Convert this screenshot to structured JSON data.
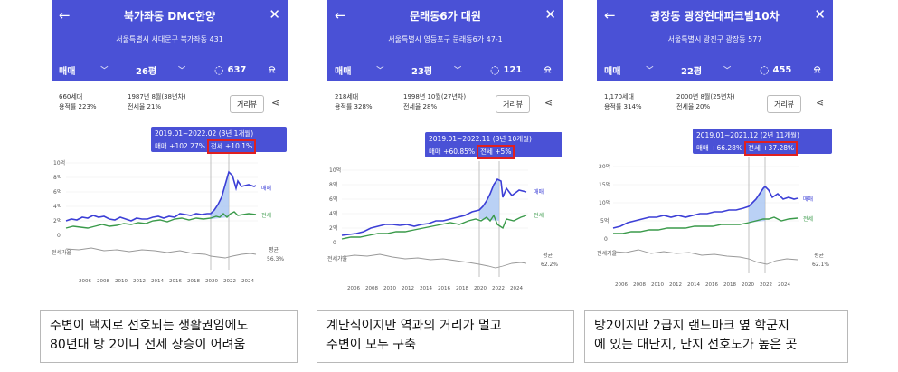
{
  "cards": [
    {
      "title": "북가좌동 DMC한양",
      "address": "서울특별시 서대문구 북가좌동 431",
      "trade_type": "매매",
      "size": "26평",
      "comment_count": "637",
      "households": "660세대",
      "far": "용적률 223%",
      "built": "1987년 8월(38년차)",
      "jeonse_ratio": "전세율 21%",
      "distance_btn": "거리뷰",
      "tip_period": "2019.01~2022.02 (3년 1개월)",
      "tip_sale": "매매 +102.27%",
      "tip_jeonse": "전세 +10.1%",
      "y_ticks": [
        "10억",
        "8억",
        "6억",
        "4억",
        "2억",
        "0"
      ],
      "ratio_label": "전세가율",
      "ratio_value_label": "평균",
      "ratio_value": "56.3%",
      "legend_sale": "매매",
      "legend_jeonse": "전세",
      "caption_line1": "주변이 택지로 선호되는 생활권임에도",
      "caption_line2": "80년대 방 2이니 전세 상승이 어려움"
    },
    {
      "title": "문래동6가 대원",
      "address": "서울특별시 영등포구 문래동6가 47-1",
      "trade_type": "매매",
      "size": "23평",
      "comment_count": "121",
      "households": "218세대",
      "far": "용적률 328%",
      "built": "1998년 10월(27년차)",
      "jeonse_ratio": "전세율 28%",
      "distance_btn": "거리뷰",
      "tip_period": "2019.01~2022.11 (3년 10개월)",
      "tip_sale": "매매 +60.85%",
      "tip_jeonse": "전세 +5%",
      "y_ticks": [
        "10억",
        "8억",
        "6억",
        "4억",
        "2억",
        "0"
      ],
      "ratio_label": "전세가율",
      "ratio_value_label": "평균",
      "ratio_value": "62.2%",
      "legend_sale": "매매",
      "legend_jeonse": "전세",
      "caption_line1": "계단식이지만 역과의 거리가 멀고",
      "caption_line2": "주변이 모두 구축"
    },
    {
      "title": "광장동 광장현대파크빌10차",
      "address": "서울특별시 광진구 광장동 577",
      "trade_type": "매매",
      "size": "22평",
      "comment_count": "455",
      "households": "1,170세대",
      "far": "용적률 314%",
      "built": "2000년 8월(25년차)",
      "jeonse_ratio": "전세율 20%",
      "distance_btn": "거리뷰",
      "tip_period": "2019.01~2021.12 (2년 11개월)",
      "tip_sale": "매매 +66.28%",
      "tip_jeonse": "전세 +37.28%",
      "y_ticks": [
        "20억",
        "15억",
        "10억",
        "5억",
        "0"
      ],
      "ratio_label": "전세가율",
      "ratio_value_label": "평균",
      "ratio_value": "62.1%",
      "legend_sale": "매매",
      "legend_jeonse": "전세",
      "caption_line1": "방2이지만 2급지 랜드마크 옆 학군지",
      "caption_line2": "에 있는 대단지, 단지 선호도가 높은 곳"
    }
  ],
  "x_ticks": [
    "2006",
    "2008",
    "2010",
    "2012",
    "2014",
    "2016",
    "2018",
    "2020",
    "2022",
    "2024"
  ],
  "colors": {
    "header": "#4a51d6",
    "sale": "#3c3fd6",
    "jeonse": "#3a9a4a",
    "highlight": "#e02020"
  }
}
